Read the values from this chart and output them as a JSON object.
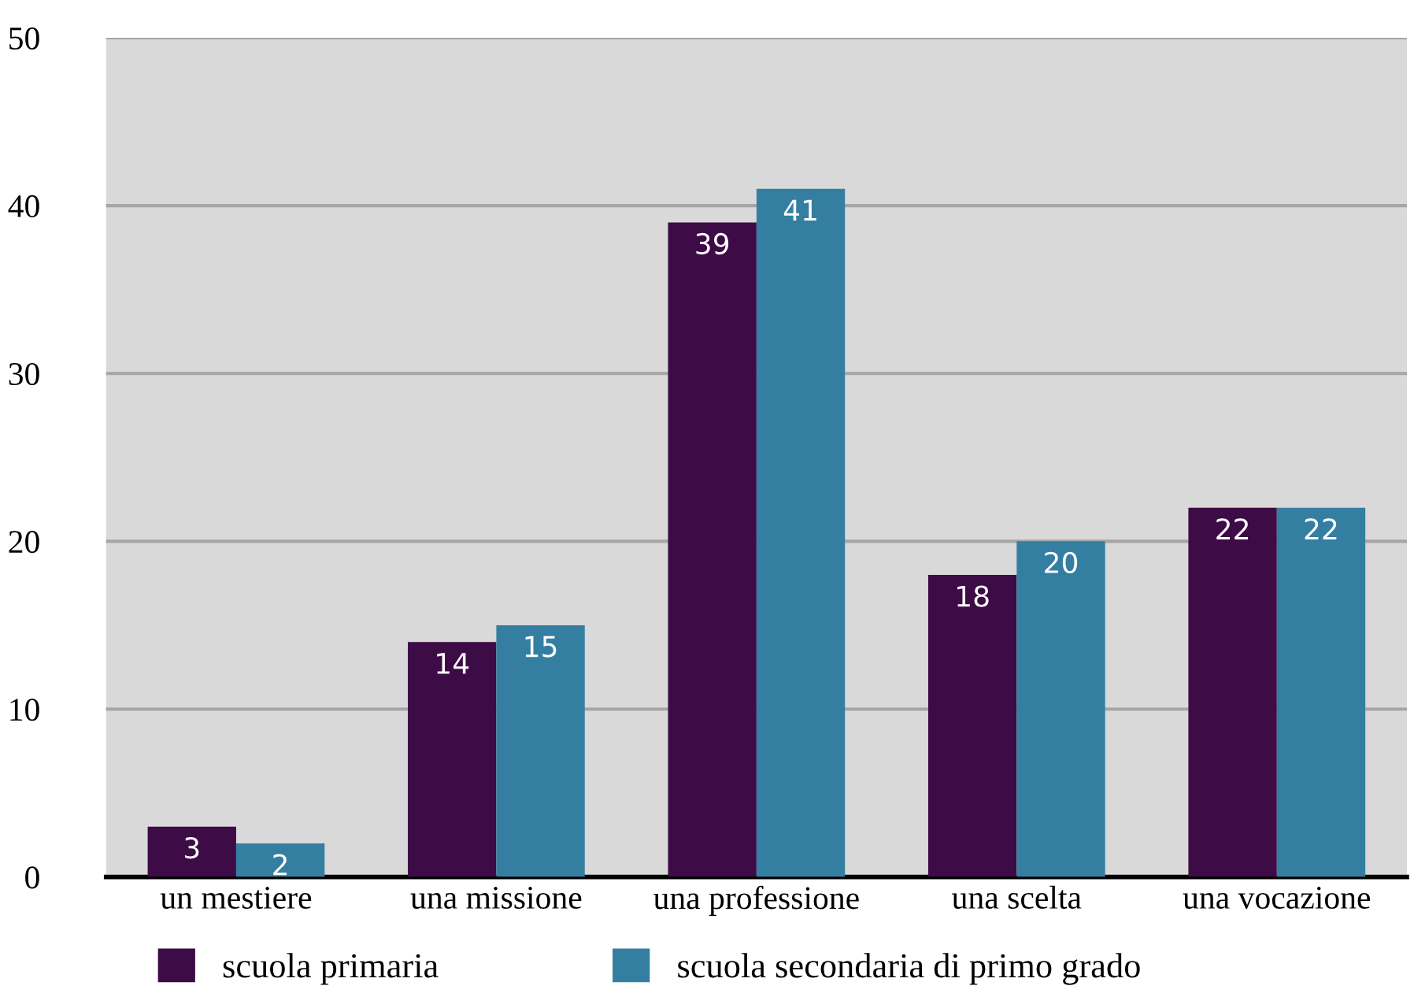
{
  "chart_data": {
    "type": "bar",
    "categories": [
      "un mestiere",
      "una missione",
      "una professione",
      "una scelta",
      "una vocazione"
    ],
    "series": [
      {
        "name": "scuola primaria",
        "color": "#3d0b45",
        "values": [
          3,
          14,
          39,
          18,
          22
        ]
      },
      {
        "name": "scuola secondaria di primo grado",
        "color": "#347fa1",
        "values": [
          2,
          15,
          41,
          20,
          22
        ]
      }
    ],
    "ylim": [
      0,
      50
    ],
    "yticks": [
      0,
      10,
      20,
      30,
      40,
      50
    ],
    "grid": "y",
    "legend": "bottom",
    "data_labels": true
  }
}
